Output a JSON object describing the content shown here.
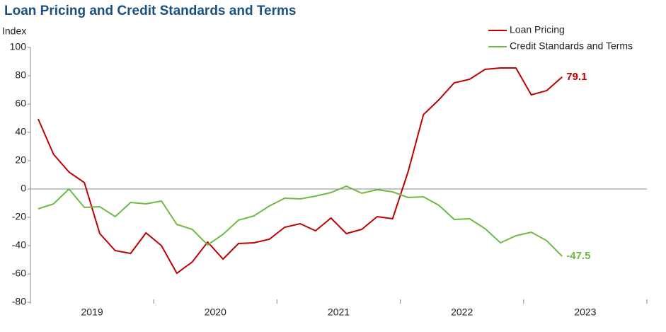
{
  "chart_data": {
    "type": "line",
    "title": "Loan Pricing  and Credit Standards and Terms",
    "y_label": "Index",
    "x": [
      2019.0625,
      2019.1875,
      2019.3125,
      2019.4375,
      2019.5625,
      2019.6875,
      2019.8125,
      2019.9375,
      2020.0625,
      2020.1875,
      2020.3125,
      2020.4375,
      2020.5625,
      2020.6875,
      2020.8125,
      2020.9375,
      2021.0625,
      2021.1875,
      2021.3125,
      2021.4375,
      2021.5625,
      2021.6875,
      2021.8125,
      2021.9375,
      2022.0625,
      2022.1875,
      2022.3125,
      2022.4375,
      2022.5625,
      2022.6875,
      2022.8125,
      2022.9375,
      2023.0625,
      2023.1875,
      2023.3125
    ],
    "series": [
      {
        "name": "Loan Pricing",
        "color": "#c00000",
        "values": [
          49.5,
          24.5,
          12,
          4.5,
          -31.5,
          -43.5,
          -45.5,
          -31,
          -40,
          -59.5,
          -51.5,
          -37.5,
          -49.5,
          -38.5,
          -38,
          -35.5,
          -27,
          -24.5,
          -29.5,
          -20.5,
          -31.5,
          -28.5,
          -19.5,
          -21,
          12,
          52.5,
          63,
          75,
          77.5,
          84.5,
          85.5,
          85.5,
          66.5,
          69.5,
          79.1
        ]
      },
      {
        "name": "Credit Standards and Terms",
        "color": "#6fba45",
        "values": [
          -14,
          -10.5,
          0,
          -13,
          -12.5,
          -19.5,
          -9.5,
          -10.5,
          -8.5,
          -25,
          -28.5,
          -39.5,
          -32,
          -22,
          -19,
          -12,
          -6.5,
          -7,
          -5,
          -2.5,
          2,
          -3,
          -0.5,
          -2,
          -6,
          -5.5,
          -11.5,
          -21.5,
          -21,
          -28,
          -38,
          -33,
          -30.5,
          -36.5,
          -47.5
        ]
      }
    ],
    "xlim": [
      2019,
      2024
    ],
    "xticks": [
      {
        "value": 2019,
        "label": "2019"
      },
      {
        "value": 2020,
        "label": "2020"
      },
      {
        "value": 2021,
        "label": "2021"
      },
      {
        "value": 2022,
        "label": "2022"
      },
      {
        "value": 2023,
        "label": "2023"
      }
    ],
    "ylim": [
      -80,
      100
    ],
    "yticks": [
      -80,
      -60,
      -40,
      -20,
      0,
      20,
      40,
      60,
      80,
      100
    ],
    "legend": "upper right"
  }
}
